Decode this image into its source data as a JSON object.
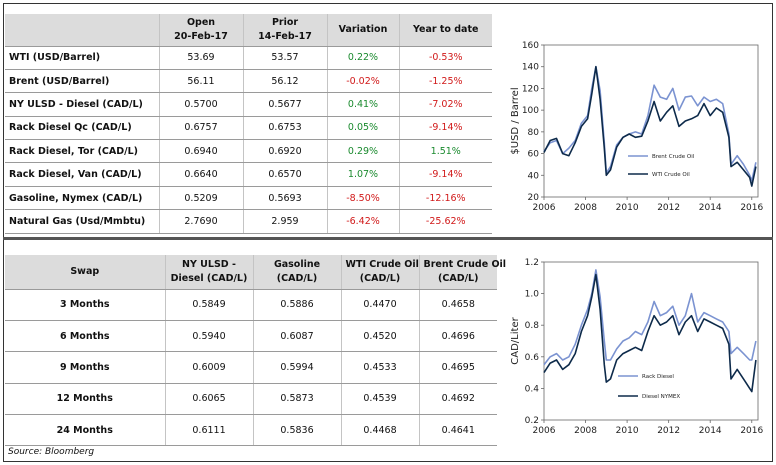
{
  "top_table": {
    "headers": {
      "label": "",
      "open": "Open",
      "open_date": "20-Feb-17",
      "prior": "Prior",
      "prior_date": "14-Feb-17",
      "variation": "Variation",
      "ytd": "Year to date"
    },
    "rows": [
      {
        "label": "WTI (USD/Barrel)",
        "open": "53.69",
        "prior": "53.57",
        "variation": "0.22%",
        "ytd": "-0.53%"
      },
      {
        "label": "Brent (USD/Barrel)",
        "open": "56.11",
        "prior": "56.12",
        "variation": "-0.02%",
        "ytd": "-1.25%"
      },
      {
        "label": "NY ULSD - Diesel (CAD/L)",
        "open": "0.5700",
        "prior": "0.5677",
        "variation": "0.41%",
        "ytd": "-7.02%"
      },
      {
        "label": "Rack Diesel Qc (CAD/L)",
        "open": "0.6757",
        "prior": "0.6753",
        "variation": "0.05%",
        "ytd": "-9.14%"
      },
      {
        "label": "Rack Diesel, Tor (CAD/L)",
        "open": "0.6940",
        "prior": "0.6920",
        "variation": "0.29%",
        "ytd": "1.51%"
      },
      {
        "label": "Rack Diesel, Van (CAD/L)",
        "open": "0.6640",
        "prior": "0.6570",
        "variation": "1.07%",
        "ytd": "-9.14%"
      },
      {
        "label": "Gasoline, Nymex (CAD/L)",
        "open": "0.5209",
        "prior": "0.5693",
        "variation": "-8.50%",
        "ytd": "-12.16%"
      },
      {
        "label": "Natural Gas (Usd/Mmbtu)",
        "open": "2.7690",
        "prior": "2.959",
        "variation": "-6.42%",
        "ytd": "-25.62%"
      }
    ]
  },
  "swap_table": {
    "headers": {
      "swap": "Swap",
      "ulsd_1": "NY ULSD -",
      "ulsd_2": "Diesel (CAD/L)",
      "gas_1": "Gasoline",
      "gas_2": "(CAD/L)",
      "wti_1": "WTI Crude Oil",
      "wti_2": "(CAD/L)",
      "brent_1": "Brent Crude Oil",
      "brent_2": "(CAD/L)"
    },
    "rows": [
      {
        "label": "3 Months",
        "ulsd": "0.5849",
        "gasoline": "0.5886",
        "wti": "0.4470",
        "brent": "0.4658"
      },
      {
        "label": "6 Months",
        "ulsd": "0.5940",
        "gasoline": "0.6087",
        "wti": "0.4520",
        "brent": "0.4696"
      },
      {
        "label": "9 Months",
        "ulsd": "0.6009",
        "gasoline": "0.5994",
        "wti": "0.4533",
        "brent": "0.4695"
      },
      {
        "label": "12 Months",
        "ulsd": "0.6065",
        "gasoline": "0.5873",
        "wti": "0.4539",
        "brent": "0.4692"
      },
      {
        "label": "24 Months",
        "ulsd": "0.6111",
        "gasoline": "0.5836",
        "wti": "0.4468",
        "brent": "0.4641"
      }
    ]
  },
  "source": "Source: Bloomberg",
  "colors": {
    "positive": "#1a8a2e",
    "negative": "#d11a1a",
    "dark_series": "#0d2a4a",
    "light_series": "#7b93d1"
  },
  "chart_data": [
    {
      "type": "line",
      "title": "",
      "xlabel": "",
      "ylabel": "$USD / Barrel",
      "xlim": [
        2006,
        2016.3
      ],
      "ylim": [
        20,
        160
      ],
      "xticks": [
        "2006",
        "2008",
        "2010",
        "2012",
        "2014",
        "2016"
      ],
      "yticks": [
        "20",
        "40",
        "60",
        "80",
        "100",
        "120",
        "140",
        "160"
      ],
      "legend_position": "center-right",
      "series": [
        {
          "name": "Brent Crude Oil",
          "color": "#7b93d1",
          "x": [
            2006.0,
            2006.3,
            2006.6,
            2006.9,
            2007.2,
            2007.5,
            2007.8,
            2008.1,
            2008.3,
            2008.5,
            2008.7,
            2008.9,
            2009.0,
            2009.2,
            2009.5,
            2009.8,
            2010.1,
            2010.4,
            2010.7,
            2011.0,
            2011.3,
            2011.6,
            2011.9,
            2012.2,
            2012.5,
            2012.8,
            2013.1,
            2013.4,
            2013.7,
            2014.0,
            2014.3,
            2014.6,
            2014.9,
            2015.0,
            2015.3,
            2015.6,
            2015.9,
            2016.0,
            2016.2
          ],
          "y": [
            62,
            70,
            72,
            60,
            65,
            72,
            88,
            95,
            120,
            140,
            118,
            70,
            42,
            48,
            68,
            75,
            78,
            80,
            78,
            95,
            123,
            112,
            110,
            120,
            100,
            112,
            113,
            104,
            112,
            108,
            110,
            106,
            78,
            50,
            58,
            50,
            40,
            35,
            52
          ]
        },
        {
          "name": "WTI Crude Oil",
          "color": "#0d2a4a",
          "x": [
            2006.0,
            2006.3,
            2006.6,
            2006.9,
            2007.2,
            2007.5,
            2007.8,
            2008.1,
            2008.3,
            2008.5,
            2008.7,
            2008.9,
            2009.0,
            2009.2,
            2009.5,
            2009.8,
            2010.1,
            2010.4,
            2010.7,
            2011.0,
            2011.3,
            2011.6,
            2011.9,
            2012.2,
            2012.5,
            2012.8,
            2013.1,
            2013.4,
            2013.7,
            2014.0,
            2014.3,
            2014.6,
            2014.9,
            2015.0,
            2015.3,
            2015.6,
            2015.9,
            2016.0,
            2016.2
          ],
          "y": [
            61,
            72,
            74,
            60,
            58,
            70,
            85,
            92,
            115,
            140,
            110,
            65,
            40,
            45,
            66,
            75,
            78,
            75,
            76,
            90,
            108,
            90,
            98,
            104,
            85,
            90,
            92,
            95,
            106,
            95,
            102,
            98,
            75,
            48,
            52,
            45,
            38,
            30,
            48
          ]
        }
      ]
    },
    {
      "type": "line",
      "title": "",
      "xlabel": "",
      "ylabel": "CAD/Liter",
      "xlim": [
        2006,
        2016.3
      ],
      "ylim": [
        0.2,
        1.2
      ],
      "xticks": [
        "2006",
        "2008",
        "2010",
        "2012",
        "2014",
        "2016"
      ],
      "yticks": [
        "0.2",
        "0.4",
        "0.6",
        "0.8",
        "1.0",
        "1.2"
      ],
      "legend_position": "bottom-right",
      "series": [
        {
          "name": "Rack Diesel",
          "color": "#7b93d1",
          "x": [
            2006.0,
            2006.3,
            2006.6,
            2006.9,
            2007.2,
            2007.5,
            2007.8,
            2008.1,
            2008.3,
            2008.5,
            2008.7,
            2008.9,
            2009.0,
            2009.2,
            2009.5,
            2009.8,
            2010.1,
            2010.4,
            2010.7,
            2011.0,
            2011.3,
            2011.6,
            2011.9,
            2012.2,
            2012.5,
            2012.8,
            2013.1,
            2013.4,
            2013.7,
            2014.0,
            2014.3,
            2014.6,
            2014.9,
            2015.0,
            2015.3,
            2015.6,
            2015.9,
            2016.0,
            2016.2
          ],
          "y": [
            0.55,
            0.6,
            0.62,
            0.58,
            0.6,
            0.68,
            0.8,
            0.9,
            1.0,
            1.15,
            0.98,
            0.7,
            0.58,
            0.58,
            0.65,
            0.7,
            0.72,
            0.76,
            0.74,
            0.82,
            0.95,
            0.86,
            0.88,
            0.92,
            0.8,
            0.86,
            1.0,
            0.82,
            0.88,
            0.86,
            0.84,
            0.82,
            0.76,
            0.62,
            0.66,
            0.62,
            0.58,
            0.58,
            0.7
          ]
        },
        {
          "name": "Diesel NYMEX",
          "color": "#0d2a4a",
          "x": [
            2006.0,
            2006.3,
            2006.6,
            2006.9,
            2007.2,
            2007.5,
            2007.8,
            2008.1,
            2008.3,
            2008.5,
            2008.7,
            2008.9,
            2009.0,
            2009.2,
            2009.5,
            2009.8,
            2010.1,
            2010.4,
            2010.7,
            2011.0,
            2011.3,
            2011.6,
            2011.9,
            2012.2,
            2012.5,
            2012.8,
            2013.1,
            2013.4,
            2013.7,
            2014.0,
            2014.3,
            2014.6,
            2014.9,
            2015.0,
            2015.3,
            2015.6,
            2015.9,
            2016.0,
            2016.2
          ],
          "y": [
            0.5,
            0.56,
            0.58,
            0.52,
            0.55,
            0.62,
            0.76,
            0.86,
            0.98,
            1.12,
            0.9,
            0.55,
            0.44,
            0.46,
            0.58,
            0.62,
            0.64,
            0.66,
            0.64,
            0.76,
            0.86,
            0.8,
            0.82,
            0.86,
            0.74,
            0.82,
            0.86,
            0.76,
            0.84,
            0.82,
            0.8,
            0.78,
            0.68,
            0.46,
            0.52,
            0.46,
            0.4,
            0.38,
            0.58
          ]
        }
      ]
    }
  ]
}
